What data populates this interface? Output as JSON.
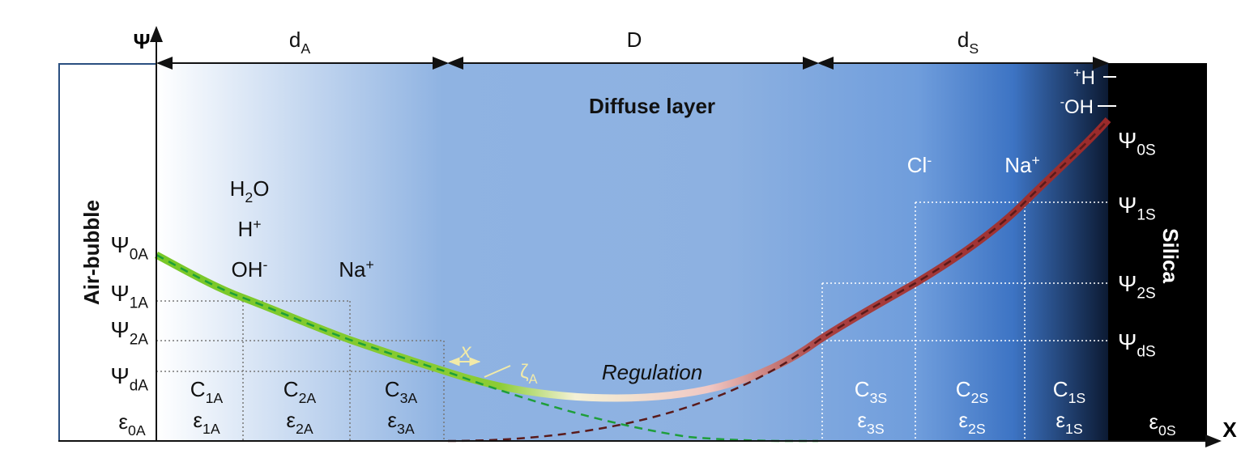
{
  "axes": {
    "y": "Ψ",
    "x": "X"
  },
  "dimensions": [
    [
      {
        "t": "d"
      },
      {
        "sub": "A"
      }
    ],
    [
      {
        "t": "D"
      }
    ],
    [
      {
        "t": "d"
      },
      {
        "sub": "S"
      }
    ]
  ],
  "regions": {
    "left": "Air-bubble",
    "middle": "Diffuse layer",
    "right": "Silica"
  },
  "annotations": {
    "regulation": "Regulation",
    "shift": "x",
    "zeta": [
      {
        "t": "ζ"
      },
      {
        "sub": "A"
      }
    ]
  },
  "air_side": {
    "potentials": [
      [
        {
          "t": "Ψ"
        },
        {
          "sub": "0A"
        }
      ],
      [
        {
          "t": "Ψ"
        },
        {
          "sub": "1A"
        }
      ],
      [
        {
          "t": "Ψ"
        },
        {
          "sub": "2A"
        }
      ],
      [
        {
          "t": "Ψ"
        },
        {
          "sub": "dA"
        }
      ]
    ],
    "epsilon0": [
      {
        "t": "ε"
      },
      {
        "sub": "0A"
      }
    ],
    "species": [
      [
        {
          "t": "H"
        },
        {
          "sub": "2"
        },
        {
          "t": "O"
        }
      ],
      [
        {
          "t": "H"
        },
        {
          "sup": "+"
        }
      ],
      [
        {
          "t": "OH"
        },
        {
          "sup": "-"
        }
      ],
      [
        {
          "t": "Na"
        },
        {
          "sup": "+"
        }
      ]
    ],
    "cells": [
      {
        "c": [
          {
            "t": "C"
          },
          {
            "sub": "1A"
          }
        ],
        "e": [
          {
            "t": "ε"
          },
          {
            "sub": "1A"
          }
        ]
      },
      {
        "c": [
          {
            "t": "C"
          },
          {
            "sub": "2A"
          }
        ],
        "e": [
          {
            "t": "ε"
          },
          {
            "sub": "2A"
          }
        ]
      },
      {
        "c": [
          {
            "t": "C"
          },
          {
            "sub": "3A"
          }
        ],
        "e": [
          {
            "t": "ε"
          },
          {
            "sub": "3A"
          }
        ]
      }
    ]
  },
  "silica_side": {
    "surface_groups": [
      [
        {
          "sup": "+"
        },
        {
          "t": "H"
        }
      ],
      [
        {
          "sup": "-"
        },
        {
          "t": "OH"
        }
      ]
    ],
    "potentials": [
      [
        {
          "t": "Ψ"
        },
        {
          "sub": "0S"
        }
      ],
      [
        {
          "t": "Ψ"
        },
        {
          "sub": "1S"
        }
      ],
      [
        {
          "t": "Ψ"
        },
        {
          "sub": "2S"
        }
      ],
      [
        {
          "t": "Ψ"
        },
        {
          "sub": "dS"
        }
      ]
    ],
    "epsilon0": [
      {
        "t": "ε"
      },
      {
        "sub": "0S"
      }
    ],
    "species": [
      [
        {
          "t": "Cl"
        },
        {
          "sup": "-"
        }
      ],
      [
        {
          "t": "Na"
        },
        {
          "sup": "+"
        }
      ]
    ],
    "cells": [
      {
        "c": [
          {
            "t": "C"
          },
          {
            "sub": "3S"
          }
        ],
        "e": [
          {
            "t": "ε"
          },
          {
            "sub": "3S"
          }
        ]
      },
      {
        "c": [
          {
            "t": "C"
          },
          {
            "sub": "2S"
          }
        ],
        "e": [
          {
            "t": "ε"
          },
          {
            "sub": "2S"
          }
        ]
      },
      {
        "c": [
          {
            "t": "C"
          },
          {
            "sub": "1S"
          }
        ],
        "e": [
          {
            "t": "ε"
          },
          {
            "sub": "1S"
          }
        ]
      }
    ]
  }
}
